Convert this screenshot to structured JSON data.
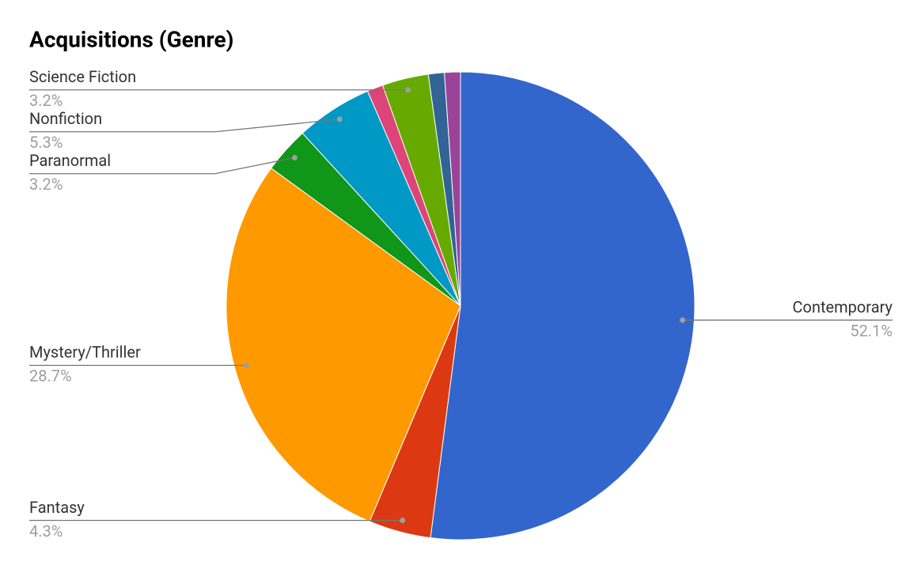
{
  "chart_data": {
    "type": "pie",
    "title": "Acquisitions (Genre)",
    "categories": [
      "Contemporary",
      "Fantasy",
      "Mystery/Thriller",
      "Paranormal",
      "Nonfiction",
      null,
      "Science Fiction",
      null,
      null
    ],
    "values": [
      52.1,
      4.3,
      28.7,
      3.2,
      5.3,
      1.1,
      3.2,
      1.1,
      1.1
    ],
    "value_labels": [
      "52.1%",
      "4.3%",
      "28.7%",
      "3.2%",
      "5.3%",
      null,
      "3.2%",
      null,
      null
    ],
    "colors": [
      "#3366cc",
      "#dc3912",
      "#ff9900",
      "#109618",
      "#0099c6",
      "#dd4477",
      "#66aa00",
      "#316395",
      "#994499"
    ]
  }
}
